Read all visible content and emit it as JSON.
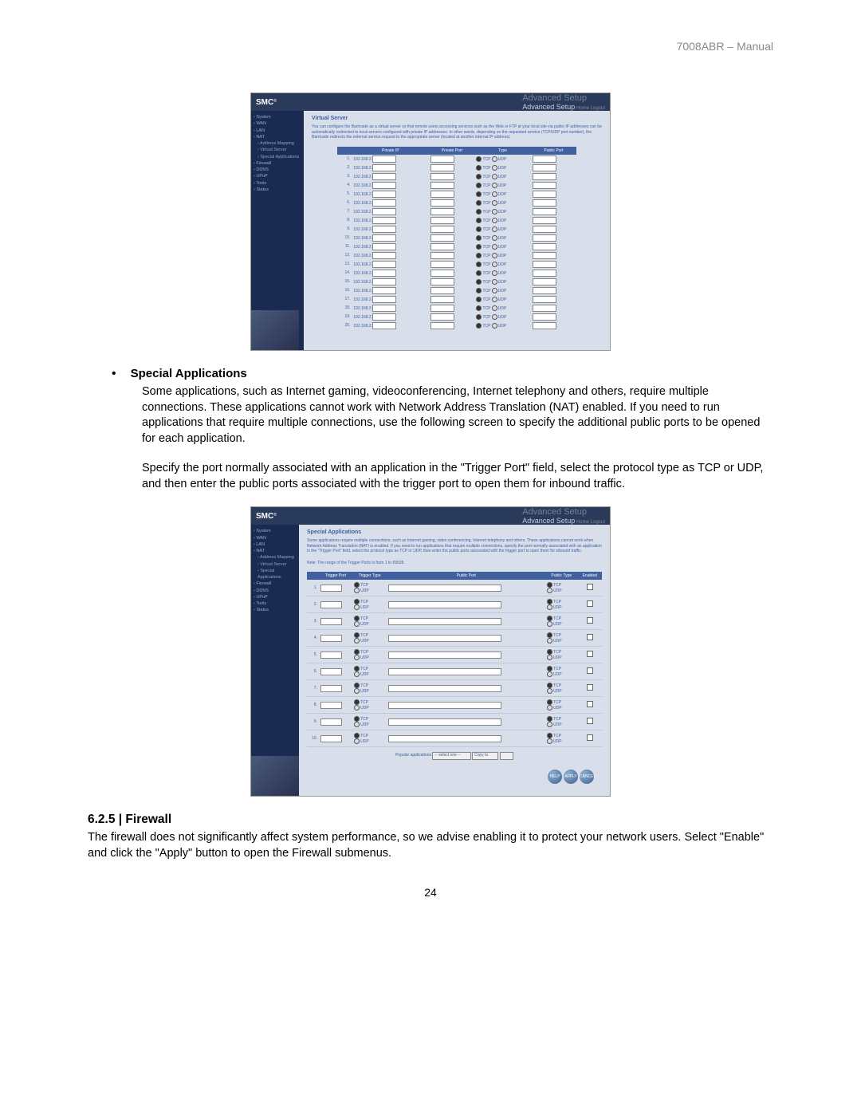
{
  "header": "7008ABR – Manual",
  "pageNumber": "24",
  "logo": "SMC",
  "logoSub": "®",
  "advSetup": "Advanced Setup",
  "advSetupGhost": "Advanced Setup",
  "topLinks": "Home   Logout",
  "screenshot1": {
    "title": "Virtual Server",
    "description": "You can configure the Barricade as a virtual server so that remote users accessing services such as the Web or FTP at your local site via public IP addresses can be automatically redirected to local servers configured with private IP addresses. In other words, depending on the requested service (TCP/UDP port number), the Barricade redirects the external service request to the appropriate server (located at another internal IP address).",
    "sidebar": [
      "System",
      "WAN",
      "LAN",
      "NAT",
      "Address Mapping",
      "Virtual Server",
      "Special Applications",
      "Firewall",
      "DDNS",
      "UPnP",
      "Tools",
      "Status"
    ],
    "activeSidebar": "Virtual Server",
    "tableHeaders": [
      "",
      "Private IP",
      "Private Port",
      "Type",
      "Public Port"
    ],
    "ipPrefix": "192.168.2.",
    "tcp": "TCP",
    "udp": "UDP",
    "rowCount": 20
  },
  "specialApps": {
    "bulletTitle": "Special Applications",
    "para1": "Some applications, such as Internet gaming, videoconferencing, Internet telephony and others, require multiple connections. These applications cannot work with Network Address Translation (NAT) enabled. If you need to run applications that require multiple connections, use the following screen to specify the additional public ports to be opened for each application.",
    "para2": "Specify the port normally associated with an application in the \"Trigger Port\" field, select the protocol type as TCP or UDP, and then enter the public ports associated with the trigger port to open them for inbound traffic."
  },
  "screenshot2": {
    "title": "Special Applications",
    "description": "Some applications require multiple connections, such as Internet gaming, video conferencing, Internet telephony and others. These applications cannot work when Network Address Translation (NAT) is enabled. If you need to run applications that require multiple connections, specify the port normally associated with an application in the \"Trigger Port\" field, select the protocol type as TCP or UDP, then enter the public ports associated with the trigger port to open them for inbound traffic.",
    "note": "Note: The range of the Trigger Ports is from 1 to 65535.",
    "sidebar": [
      "System",
      "WAN",
      "LAN",
      "NAT",
      "Address Mapping",
      "Virtual Server",
      "Special Applications",
      "Firewall",
      "DDNS",
      "UPnP",
      "Tools",
      "Status"
    ],
    "activeSidebar": "Special Applications",
    "tableHeaders": [
      "",
      "Trigger Port",
      "Trigger Type",
      "Public Port",
      "Public Type",
      "Enabled"
    ],
    "tcp": "TCP",
    "udp": "UDP",
    "rowCount": 10,
    "popularLabel": "Popular applications",
    "popularSelect": "-- select one --",
    "copyTo": "Copy to",
    "buttons": [
      "HELP",
      "APPLY",
      "CANCEL"
    ]
  },
  "firewall": {
    "heading": "6.2.5 | Firewall",
    "text": "The firewall does not significantly affect system performance, so we advise enabling it to protect your network users. Select \"Enable\" and click the \"Apply\" button to open the Firewall submenus."
  }
}
